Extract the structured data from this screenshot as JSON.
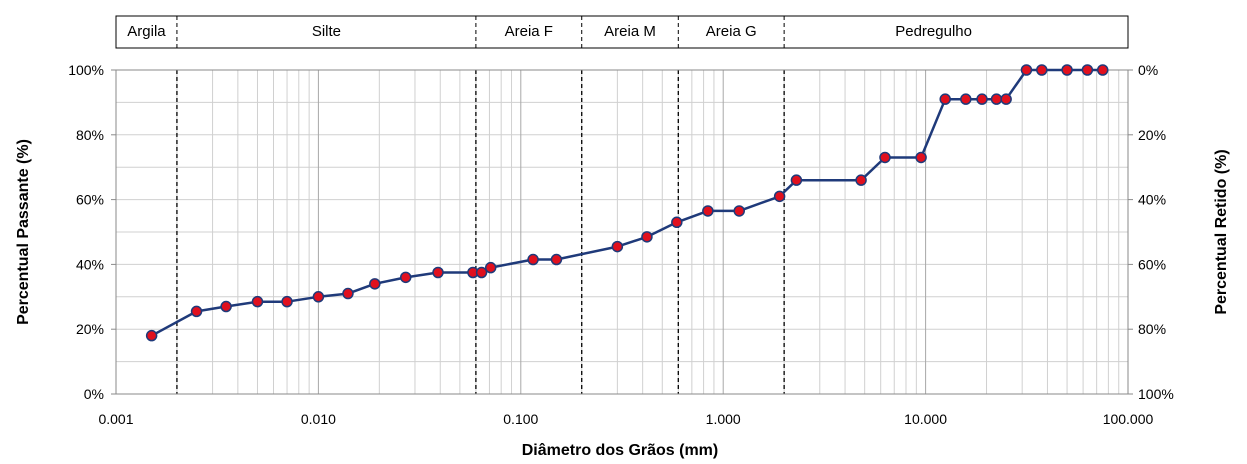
{
  "chart_data": {
    "type": "line",
    "x_scale": "log",
    "xlim": [
      0.001,
      100
    ],
    "ylim": [
      0,
      100
    ],
    "y2lim": [
      100,
      0
    ],
    "xlabel": "Diâmetro dos Grãos (mm)",
    "ylabel": "Percentual Passante (%)",
    "y2label": "Percentual Retido (%)",
    "x_ticks": [
      "0.001",
      "0.010",
      "0.100",
      "1.000",
      "10.000",
      "100.000"
    ],
    "y_ticks": [
      "0%",
      "20%",
      "40%",
      "60%",
      "80%",
      "100%"
    ],
    "y2_ticks": [
      "100%",
      "80%",
      "60%",
      "40%",
      "20%",
      "0%"
    ],
    "grid": true,
    "size_classes": [
      {
        "label": "Argila",
        "from": 0.001,
        "to": 0.002
      },
      {
        "label": "Silte",
        "from": 0.002,
        "to": 0.06
      },
      {
        "label": "Areia F",
        "from": 0.06,
        "to": 0.2
      },
      {
        "label": "Areia M",
        "from": 0.2,
        "to": 0.6
      },
      {
        "label": "Areia G",
        "from": 0.6,
        "to": 2.0
      },
      {
        "label": "Pedregulho",
        "from": 2.0,
        "to": 60
      }
    ],
    "boundaries": [
      0.002,
      0.06,
      0.2,
      0.6,
      2.0
    ],
    "line_color": "#1f3a7a",
    "marker_color": "#e0101e",
    "series": [
      {
        "x": [
          0.0015,
          0.0025,
          0.0035,
          0.005,
          0.007,
          0.01,
          0.014,
          0.019,
          0.027,
          0.039,
          0.058,
          0.064,
          0.071,
          0.115,
          0.15,
          0.3,
          0.42,
          0.59,
          0.84,
          1.2,
          1.9,
          2.3,
          4.8,
          6.3,
          9.5,
          12.5,
          15.8,
          19,
          22.4,
          25,
          31.5,
          37.5,
          50,
          63,
          75
        ],
        "y": [
          18,
          25.5,
          27,
          28.5,
          28.5,
          30,
          31,
          34,
          36,
          37.5,
          37.5,
          37.5,
          39,
          41.5,
          41.5,
          45.5,
          48.5,
          53,
          56.5,
          56.5,
          61,
          66,
          66,
          73,
          73,
          91,
          91,
          91,
          91,
          91,
          100,
          100,
          100,
          100,
          100
        ]
      }
    ]
  }
}
